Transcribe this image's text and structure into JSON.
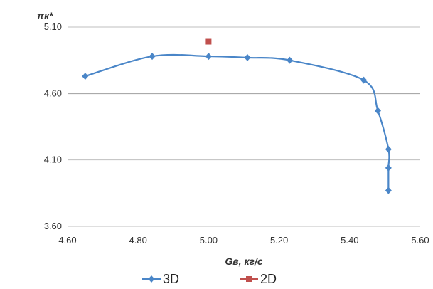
{
  "top_caption": "",
  "chart_data": {
    "type": "line",
    "xlabel": "Gв, кг/с",
    "ylabel": "πк*",
    "xlim": [
      4.6,
      5.6
    ],
    "ylim": [
      3.6,
      5.1
    ],
    "xticks": [
      "4.60",
      "4.80",
      "5.00",
      "5.20",
      "5.40",
      "5.60"
    ],
    "yticks": [
      "3.60",
      "4.10",
      "4.60",
      "5.10"
    ],
    "grid": "horizontal",
    "legend_position": "bottom",
    "series": [
      {
        "name": "3D",
        "color": "#4a86c8",
        "marker": "diamond",
        "points": [
          {
            "x": 4.65,
            "y": 4.73
          },
          {
            "x": 4.84,
            "y": 4.88
          },
          {
            "x": 5.0,
            "y": 4.88
          },
          {
            "x": 5.11,
            "y": 4.87
          },
          {
            "x": 5.23,
            "y": 4.85
          },
          {
            "x": 5.44,
            "y": 4.7
          },
          {
            "x": 5.48,
            "y": 4.47
          },
          {
            "x": 5.51,
            "y": 4.18
          },
          {
            "x": 5.51,
            "y": 4.04
          },
          {
            "x": 5.51,
            "y": 3.87
          }
        ]
      },
      {
        "name": "2D",
        "color": "#c0504d",
        "marker": "square",
        "points": [
          {
            "x": 5.0,
            "y": 4.99
          }
        ]
      }
    ]
  }
}
